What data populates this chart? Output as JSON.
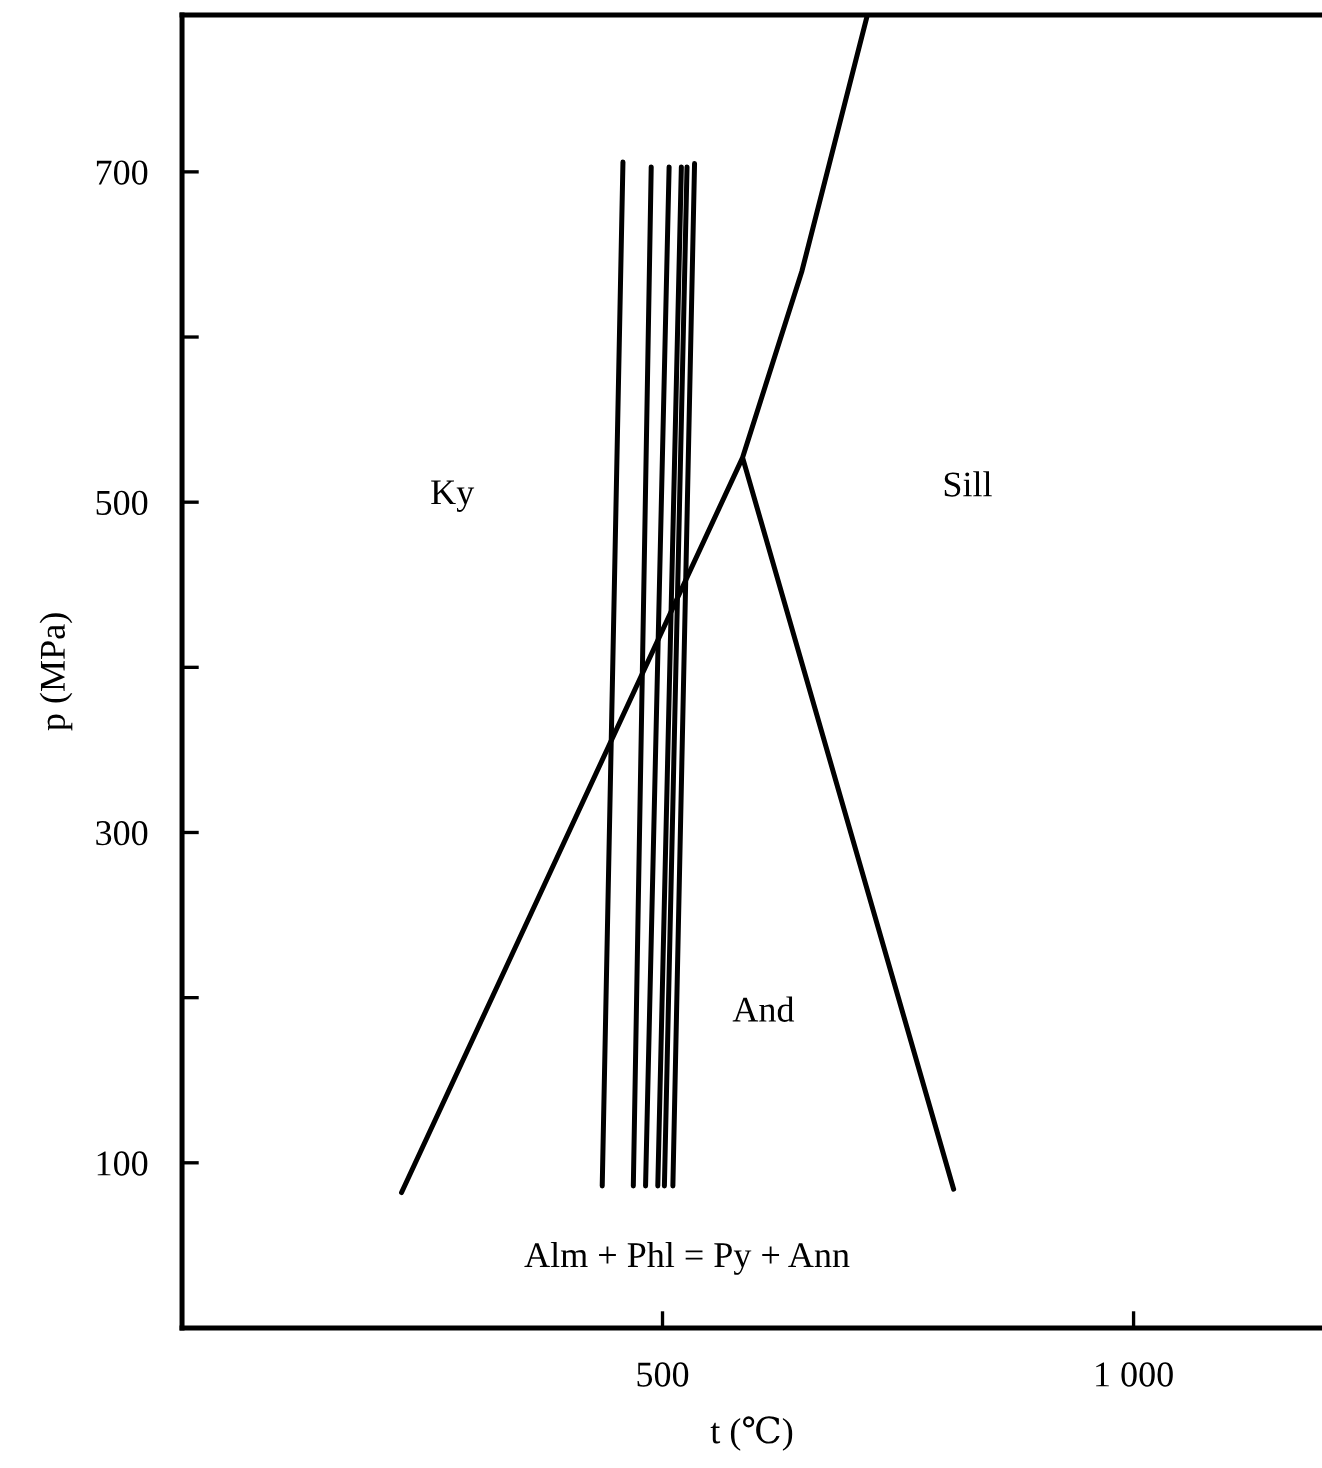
{
  "chart_data": {
    "type": "line",
    "xlabel": "t (℃)",
    "ylabel": "p (MPa)",
    "xlim": [
      -10,
      1200
    ],
    "ylim": [
      0,
      795
    ],
    "xticks": [
      500,
      {
        "value": 1000,
        "label": "1 000"
      }
    ],
    "yticks": [
      100,
      {
        "value": 200,
        "label": null
      },
      300,
      {
        "value": 400,
        "label": null
      },
      500,
      {
        "value": 600,
        "label": null
      },
      700
    ],
    "grid": false,
    "marker": "none",
    "line_style": "solid",
    "series": [
      {
        "color": "#000000",
        "x": [
          223,
          585,
          648,
          717,
          null,
          585,
          809
        ],
        "values": [
          82,
          527,
          640,
          794,
          null,
          527,
          84
        ]
      },
      {
        "color": "#000000",
        "x": [
          436,
          458
        ],
        "values": [
          86,
          706
        ]
      },
      {
        "color": "#000000",
        "x": [
          469,
          488
        ],
        "values": [
          86,
          703
        ]
      },
      {
        "color": "#000000",
        "x": [
          482,
          507
        ],
        "values": [
          86,
          703
        ]
      },
      {
        "color": "#000000",
        "x": [
          495,
          520
        ],
        "values": [
          86,
          703
        ]
      },
      {
        "color": "#000000",
        "x": [
          502,
          526
        ],
        "values": [
          86,
          703
        ]
      },
      {
        "color": "#000000",
        "x": [
          511,
          534
        ],
        "values": [
          86,
          705
        ]
      }
    ],
    "annotations": [
      "Ky",
      "Sill",
      "And",
      "Alm + Phl = Py + Ann"
    ]
  }
}
